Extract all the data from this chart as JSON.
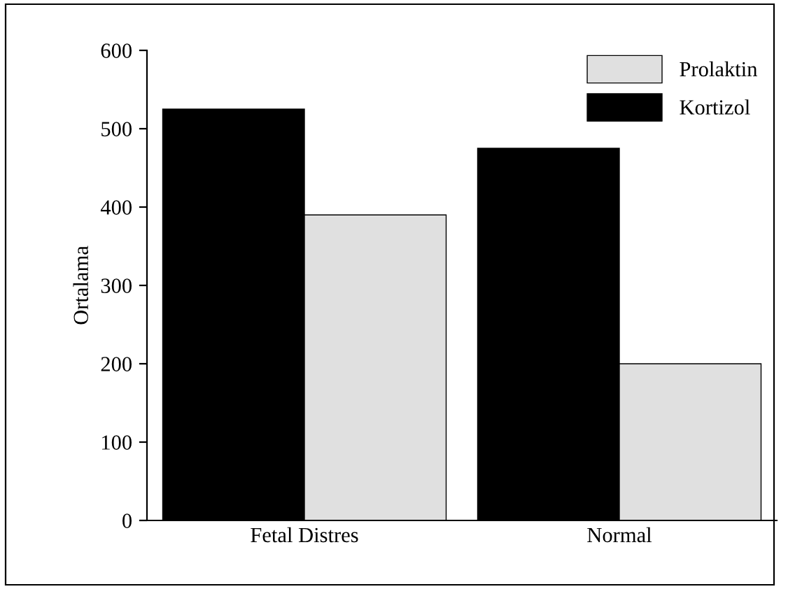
{
  "chart_data": {
    "type": "bar",
    "ylabel": "Ortalama",
    "categories": [
      "Fetal Distres",
      "Normal"
    ],
    "series": [
      {
        "name": "Kortizol",
        "color": "#000000",
        "values": [
          525,
          475
        ]
      },
      {
        "name": "Prolaktin",
        "color": "#e0e0e0",
        "values": [
          390,
          200
        ]
      }
    ],
    "ylim": [
      0,
      600
    ],
    "yticks": [
      0,
      100,
      200,
      300,
      400,
      500,
      600
    ],
    "grid": false,
    "legend": "top right"
  }
}
